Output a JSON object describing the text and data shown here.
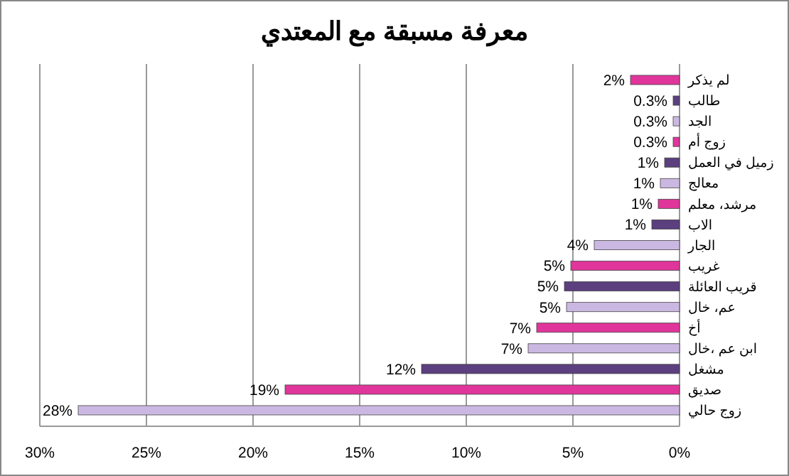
{
  "chart_data": {
    "type": "bar",
    "orientation": "horizontal",
    "title": "معرفة مسبقة مع المعتدي",
    "categories": [
      "لم يذكر",
      "طالب",
      "الجد",
      "زوج أم",
      "زميل في العمل",
      "معالج",
      "مرشد، معلم",
      "الاب",
      "الجار",
      "غريب",
      "قريب العائلة",
      "عم، خال",
      "أخ",
      "ابن عم ،خال",
      "مشغل",
      "صديق",
      "زوج حالي"
    ],
    "values": [
      2.3,
      0.3,
      0.3,
      0.3,
      0.7,
      0.9,
      1.0,
      1.3,
      4.0,
      5.1,
      5.4,
      5.3,
      6.7,
      7.1,
      12.1,
      18.5,
      28.2
    ],
    "value_labels": [
      "2%",
      "0.3%",
      "0.3%",
      "0.3%",
      "1%",
      "1%",
      "1%",
      "1%",
      "4%",
      "5%",
      "5%",
      "5%",
      "7%",
      "7%",
      "12%",
      "19%",
      "28%"
    ],
    "colors": [
      "#e0359a",
      "#5b3f7e",
      "#cbb8e2",
      "#e0359a",
      "#5b3f7e",
      "#cbb8e2",
      "#e0359a",
      "#5b3f7e",
      "#cbb8e2",
      "#e0359a",
      "#5b3f7e",
      "#cbb8e2",
      "#e0359a",
      "#cbb8e2",
      "#5b3f7e",
      "#e0359a",
      "#cbb8e2"
    ],
    "xlim": [
      30,
      0
    ],
    "xticks": [
      {
        "value": 30,
        "label": "30%"
      },
      {
        "value": 25,
        "label": "25%"
      },
      {
        "value": 20,
        "label": "20%"
      },
      {
        "value": 15,
        "label": "15%"
      },
      {
        "value": 10,
        "label": "10%"
      },
      {
        "value": 5,
        "label": "5%"
      },
      {
        "value": 0,
        "label": "0%"
      }
    ],
    "grid": "x"
  }
}
